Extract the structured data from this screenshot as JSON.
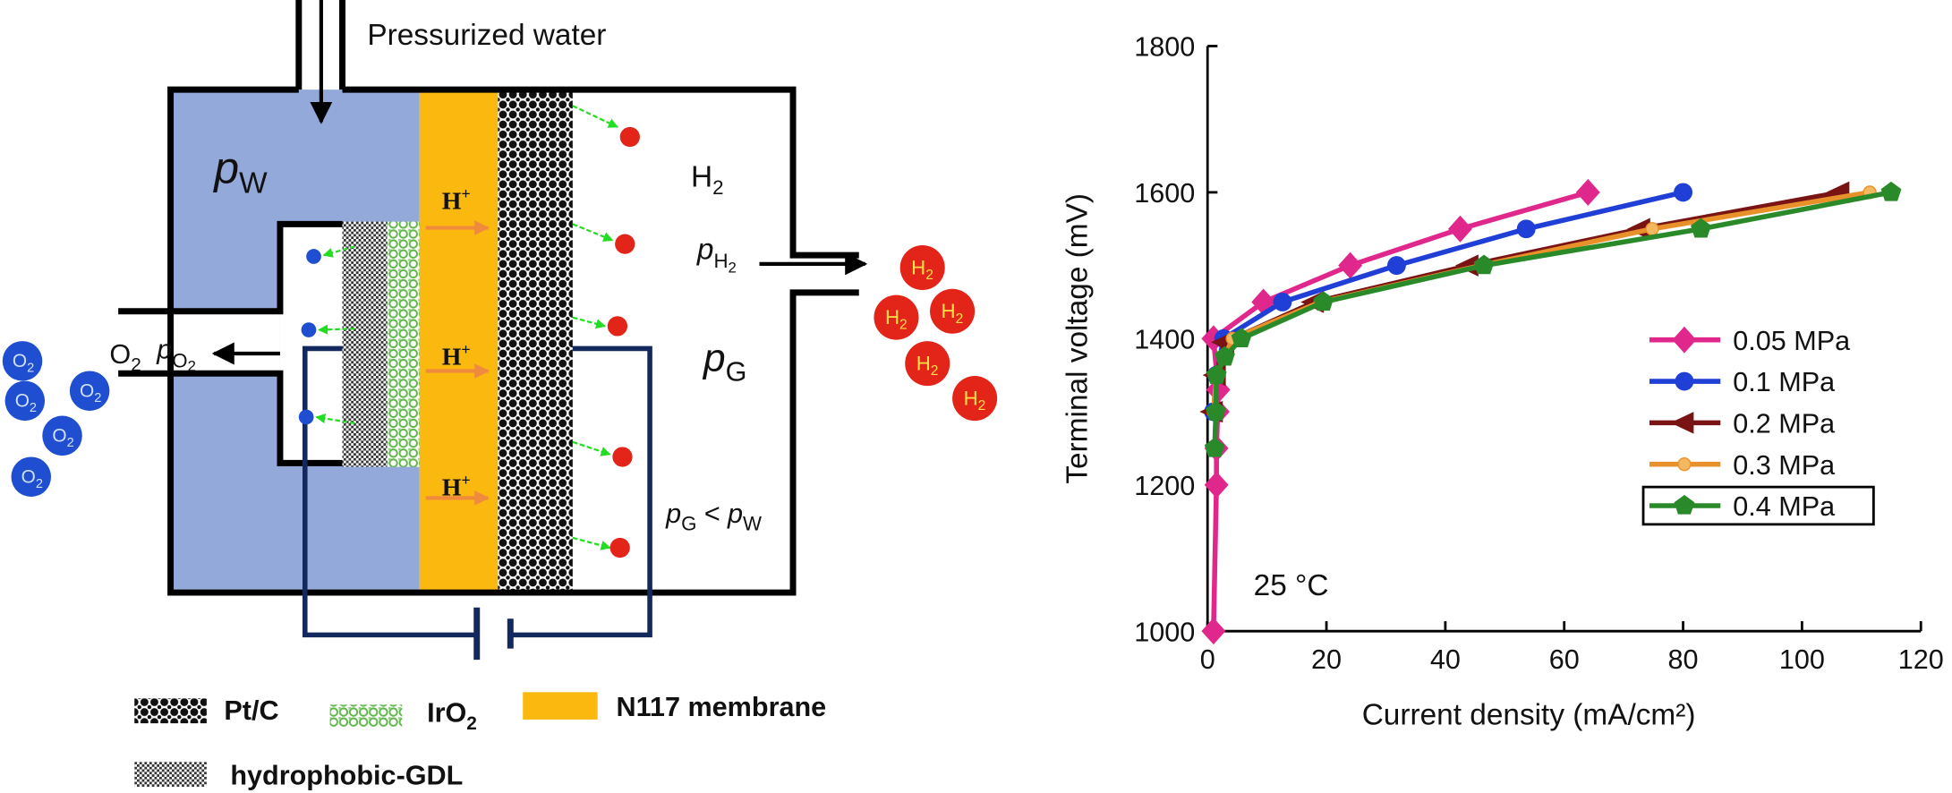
{
  "diagram": {
    "inlet": "Pressurized water",
    "pw": {
      "main": "p",
      "sub": "W"
    },
    "h2": {
      "main": "H",
      "sub": "2"
    },
    "ph2": {
      "main": "p",
      "sub": "H",
      "subsub": "2"
    },
    "o2": {
      "main": "O",
      "sub": "2"
    },
    "po2": {
      "main": "p",
      "sub": "O",
      "subsub": "2"
    },
    "pg": {
      "main": "p",
      "sub": "G"
    },
    "relation": {
      "left": {
        "main": "p",
        "sub": "G"
      },
      "op": "<",
      "right": {
        "main": "p",
        "sub": "W"
      }
    },
    "proton": {
      "main": "H",
      "sup": "+"
    },
    "legend": {
      "ptc": "Pt/C",
      "iro2": {
        "main": "IrO",
        "sub": "2"
      },
      "membrane": "N117 membrane",
      "gdl": "hydrophobic-GDL"
    }
  },
  "chart_data": {
    "type": "line",
    "xlabel": "Current density (mA/cm²)",
    "ylabel": "Terminal voltage (mV)",
    "annotation": "25 °C",
    "xlim": [
      0,
      120
    ],
    "xticks": [
      0,
      20,
      40,
      60,
      80,
      100,
      120
    ],
    "ylim": [
      1000,
      1800
    ],
    "yticks": [
      1000,
      1200,
      1400,
      1600,
      1800
    ],
    "legend": "center right",
    "series": [
      {
        "name": "0.05 MPa",
        "color": "#e0288c",
        "marker": "diamond",
        "x": [
          1,
          1.5,
          1.5,
          1.7,
          1.8,
          1,
          9.4,
          24,
          42.5,
          64
        ],
        "values": [
          1000,
          1200,
          1250,
          1300,
          1330,
          1400,
          1450,
          1500,
          1550,
          1600
        ]
      },
      {
        "name": "0.1 MPa",
        "color": "#1f3fd6",
        "marker": "circle",
        "x": [
          1,
          1.5,
          2.7,
          12.6,
          31.8,
          53.6,
          80
        ],
        "values": [
          1300,
          1350,
          1400,
          1450,
          1500,
          1550,
          1600
        ]
      },
      {
        "name": "0.2 MPa",
        "color": "#7a1414",
        "marker": "triangle-left",
        "x": [
          1,
          1.5,
          2.9,
          18,
          44,
          72.9,
          106.4
        ],
        "values": [
          1300,
          1350,
          1395,
          1450,
          1500,
          1550,
          1600
        ]
      },
      {
        "name": "0.3 MPa",
        "color": "#e8912a",
        "marker": "circle-small",
        "x": [
          1,
          1.5,
          4.2,
          19,
          46,
          74.8,
          111.4
        ],
        "values": [
          1300,
          1350,
          1400,
          1450,
          1500,
          1550,
          1600
        ]
      },
      {
        "name": "0.4 MPa",
        "color": "#2a8a2a",
        "marker": "pentagon",
        "x": [
          1.2,
          1.4,
          1.5,
          2.9,
          5.7,
          19.5,
          46.5,
          83,
          115
        ],
        "values": [
          1250,
          1300,
          1350,
          1375,
          1400,
          1450,
          1500,
          1550,
          1600
        ]
      }
    ]
  }
}
